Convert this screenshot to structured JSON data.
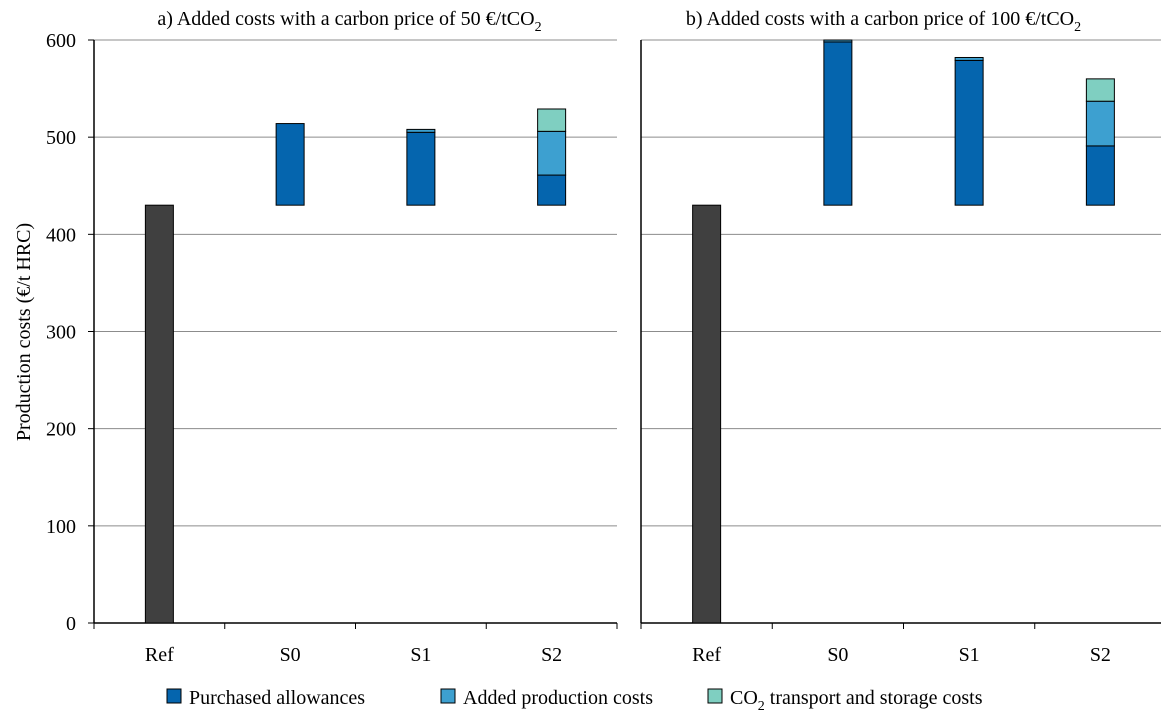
{
  "y_axis_label": "Production costs (€/t HRC)",
  "colors": {
    "reference": "#404040",
    "purchased_allowances": "#0565AE",
    "added_production_costs": "#3DA0D0",
    "co2_transport_storage": "#7FCFC1",
    "gridline": "#8C8C8C"
  },
  "legend": [
    {
      "key": "purchased_allowances",
      "pre": "Purchased allowances",
      "sub": "",
      "post": ""
    },
    {
      "key": "added_production_costs",
      "pre": "Added production costs",
      "sub": "",
      "post": ""
    },
    {
      "key": "co2_transport_storage",
      "pre": "CO",
      "sub": "2",
      "post": " transport and storage costs"
    }
  ],
  "chart_data": [
    {
      "type": "bar",
      "stacked": true,
      "title": {
        "pre": "a) Added costs with a carbon price of 50 €/tCO",
        "sub": "2"
      },
      "categories": [
        "Ref",
        "S0",
        "S1",
        "S2"
      ],
      "ylabel": "Production costs (€/t HRC)",
      "ylim": [
        0,
        600
      ],
      "yticks": [
        0,
        100,
        200,
        300,
        400,
        500,
        600
      ],
      "grid": true,
      "legend_position": "bottom",
      "bars": [
        {
          "category": "Ref",
          "segments": [
            {
              "series": "reference",
              "from": 0,
              "to": 430
            }
          ]
        },
        {
          "category": "S0",
          "segments": [
            {
              "series": "purchased_allowances",
              "from": 430,
              "to": 514
            }
          ]
        },
        {
          "category": "S1",
          "segments": [
            {
              "series": "purchased_allowances",
              "from": 430,
              "to": 505
            },
            {
              "series": "added_production_costs",
              "from": 505,
              "to": 508
            }
          ]
        },
        {
          "category": "S2",
          "segments": [
            {
              "series": "purchased_allowances",
              "from": 430,
              "to": 461
            },
            {
              "series": "added_production_costs",
              "from": 461,
              "to": 506
            },
            {
              "series": "co2_transport_storage",
              "from": 506,
              "to": 529
            }
          ]
        }
      ]
    },
    {
      "type": "bar",
      "stacked": true,
      "title": {
        "pre": "b) Added costs with a carbon price of 100 €/tCO",
        "sub": "2"
      },
      "categories": [
        "Ref",
        "S0",
        "S1",
        "S2"
      ],
      "ylim": [
        0,
        600
      ],
      "grid": true,
      "legend_position": "bottom",
      "bars": [
        {
          "category": "Ref",
          "segments": [
            {
              "series": "reference",
              "from": 0,
              "to": 430
            }
          ]
        },
        {
          "category": "S0",
          "segments": [
            {
              "series": "purchased_allowances",
              "from": 430,
              "to": 598
            },
            {
              "series": "added_production_costs",
              "from": 598,
              "to": 600
            }
          ]
        },
        {
          "category": "S1",
          "segments": [
            {
              "series": "purchased_allowances",
              "from": 430,
              "to": 579
            },
            {
              "series": "added_production_costs",
              "from": 579,
              "to": 582
            }
          ]
        },
        {
          "category": "S2",
          "segments": [
            {
              "series": "purchased_allowances",
              "from": 430,
              "to": 491
            },
            {
              "series": "added_production_costs",
              "from": 491,
              "to": 537
            },
            {
              "series": "co2_transport_storage",
              "from": 537,
              "to": 560
            }
          ]
        }
      ]
    }
  ]
}
